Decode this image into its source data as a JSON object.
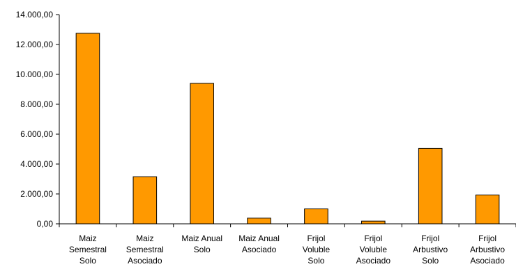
{
  "chart_data": {
    "type": "bar",
    "title": "",
    "xlabel": "",
    "ylabel": "",
    "categories": [
      [
        "Maiz",
        "Semestral",
        "Solo"
      ],
      [
        "Maiz",
        "Semestral",
        "Asociado"
      ],
      [
        "Maiz Anual",
        "Solo"
      ],
      [
        "Maiz Anual",
        "Asociado"
      ],
      [
        "Frijol",
        "Voluble",
        "Solo"
      ],
      [
        "Frijol",
        "Voluble",
        "Asociado"
      ],
      [
        "Frijol",
        "Arbustivo",
        "Solo"
      ],
      [
        "Frijol",
        "Arbustivo",
        "Asociado"
      ]
    ],
    "values": [
      12750,
      3150,
      9400,
      380,
      1000,
      180,
      5050,
      1930
    ],
    "ylim": [
      0,
      14000
    ],
    "yticks": [
      0,
      2000,
      4000,
      6000,
      8000,
      10000,
      12000,
      14000
    ],
    "ytick_labels": [
      "0,00",
      "2.000,00",
      "4.000,00",
      "6.000,00",
      "8.000,00",
      "10.000,00",
      "12.000,00",
      "14.000,00"
    ],
    "grid": false,
    "legend": "none",
    "bar_color": "#FF9900",
    "bar_edge_color": "#000000",
    "axis_color": "#000000"
  }
}
